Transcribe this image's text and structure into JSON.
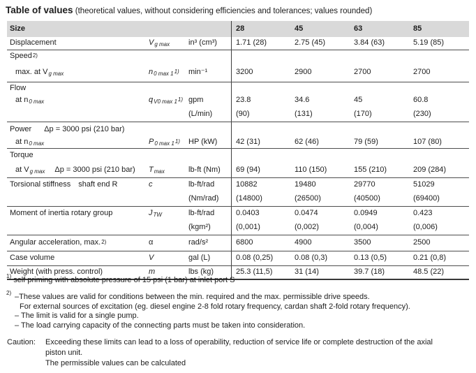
{
  "title": {
    "main": "Table of values",
    "sub": "(theoretical values, without considering efficiencies and tolerances; values rounded)"
  },
  "colors": {
    "header_bg": "#d9d9d9",
    "rule": "#4d4d4d",
    "text": "#1c1c1c"
  },
  "table": {
    "header": {
      "size_label": "Size",
      "cols": [
        "28",
        "45",
        "63",
        "85"
      ]
    },
    "rows": {
      "displacement": {
        "label": "Displacement",
        "sym_base": "V",
        "sym_sub": "g max",
        "unit": "in³ (cm³)",
        "v": [
          "1.71 (28)",
          "2.75 (45)",
          "3.84 (63)",
          "5.19 (85)"
        ]
      },
      "speed_section": {
        "label": "Speed",
        "sup": "2)"
      },
      "speed_max": {
        "label_pre": "max. at V",
        "label_sub": "g max",
        "sym_base": "n",
        "sym_sub": "0 max 1",
        "sym_sup": "1)",
        "unit": "min⁻¹",
        "v": [
          "3200",
          "2900",
          "2700",
          "2700"
        ]
      },
      "flow_section": {
        "label": "Flow"
      },
      "flow_at": {
        "label_pre": "at n",
        "label_sub": "0 max",
        "sym_base": "q",
        "sym_sub": "V0 max 1",
        "sym_sup": "1)",
        "unit": "gpm",
        "v": [
          "23.8",
          "34.6",
          "45",
          "60.8"
        ]
      },
      "flow_alt": {
        "unit": "(L/min)",
        "v": [
          "(90)",
          "(131)",
          "(170)",
          "(230)"
        ]
      },
      "power_section": {
        "label": "Power",
        "extra": "Δp = 3000 psi (210 bar)"
      },
      "power_at": {
        "label_pre": "at n",
        "label_sub": "0 max",
        "sym_base": "P",
        "sym_sub": "0 max 1",
        "sym_sup": "1)",
        "unit": "HP (kW)",
        "v": [
          "42 (31)",
          "62 (46)",
          "79 (59)",
          "107 (80)"
        ]
      },
      "torque_section": {
        "label": "Torque"
      },
      "torque_at": {
        "label_pre": "at V",
        "label_sub": "g max",
        "extra": "Δp = 3000 psi (210 bar)",
        "sym_base": "T",
        "sym_sub": "max",
        "unit": "lb-ft (Nm)",
        "v": [
          "69 (94)",
          "110 (150)",
          "155 (210)",
          "209 (284)"
        ]
      },
      "stiffness": {
        "label": "Torsional stiffness",
        "extra": "shaft end R",
        "sym_base": "c",
        "unit": "lb-ft/rad",
        "v": [
          "10882",
          "19480",
          "29770",
          "51029"
        ]
      },
      "stiffness_alt": {
        "unit": "(Nm/rad)",
        "v": [
          "(14800)",
          "(26500)",
          "(40500)",
          "(69400)"
        ]
      },
      "inertia": {
        "label": "Moment of inertia rotary group",
        "sym_base": "J",
        "sym_sub": "TW",
        "unit": "lb-ft/rad",
        "v": [
          "0.0403",
          "0.0474",
          "0.0949",
          "0.423"
        ]
      },
      "inertia_alt": {
        "unit": "(kgm²)",
        "v": [
          "(0,001)",
          "(0,002)",
          "(0,004)",
          "(0,006)"
        ]
      },
      "angular": {
        "label": "Angular acceleration, max.",
        "sup": "2)",
        "sym_base": "α",
        "unit": "rad/s²",
        "v": [
          "6800",
          "4900",
          "3500",
          "2500"
        ]
      },
      "case_volume": {
        "label": "Case volume",
        "sym_base": "V",
        "unit": "gal (L)",
        "v": [
          "0.08 (0,25)",
          "0.08 (0,3)",
          "0.13 (0,5)",
          "0.21 (0,8)"
        ]
      },
      "weight": {
        "label": "Weight (with press. control)",
        "sym_base": "m",
        "unit": "lbs (kg)",
        "v": [
          "25.3 (11,5)",
          "31 (14)",
          "39.7 (18)",
          "48.5 (22)"
        ]
      }
    }
  },
  "footnotes": {
    "fn1": {
      "marker": "1)",
      "text": "self priming with absolute pressure of 15 psi (1 bar) at inlet port S"
    },
    "fn2": {
      "marker": "2)",
      "lines": [
        "–These values are valid for conditions between the min. required and the max. permissible drive speeds.",
        "For external sources of excitation (eg. diesel engine 2-8 fold rotary frequency, cardan shaft 2-fold rotary frequency).",
        "– The limit is valid for a single pump.",
        "– The load carrying capacity of the connecting parts must be taken into consideration."
      ]
    }
  },
  "caution": {
    "label": "Caution:",
    "lines": [
      "Exceeding these limits can lead to a loss of operability, reduction of service life or complete destruction of the axial",
      "piston unit.",
      "The permissible values can be calculated"
    ]
  }
}
